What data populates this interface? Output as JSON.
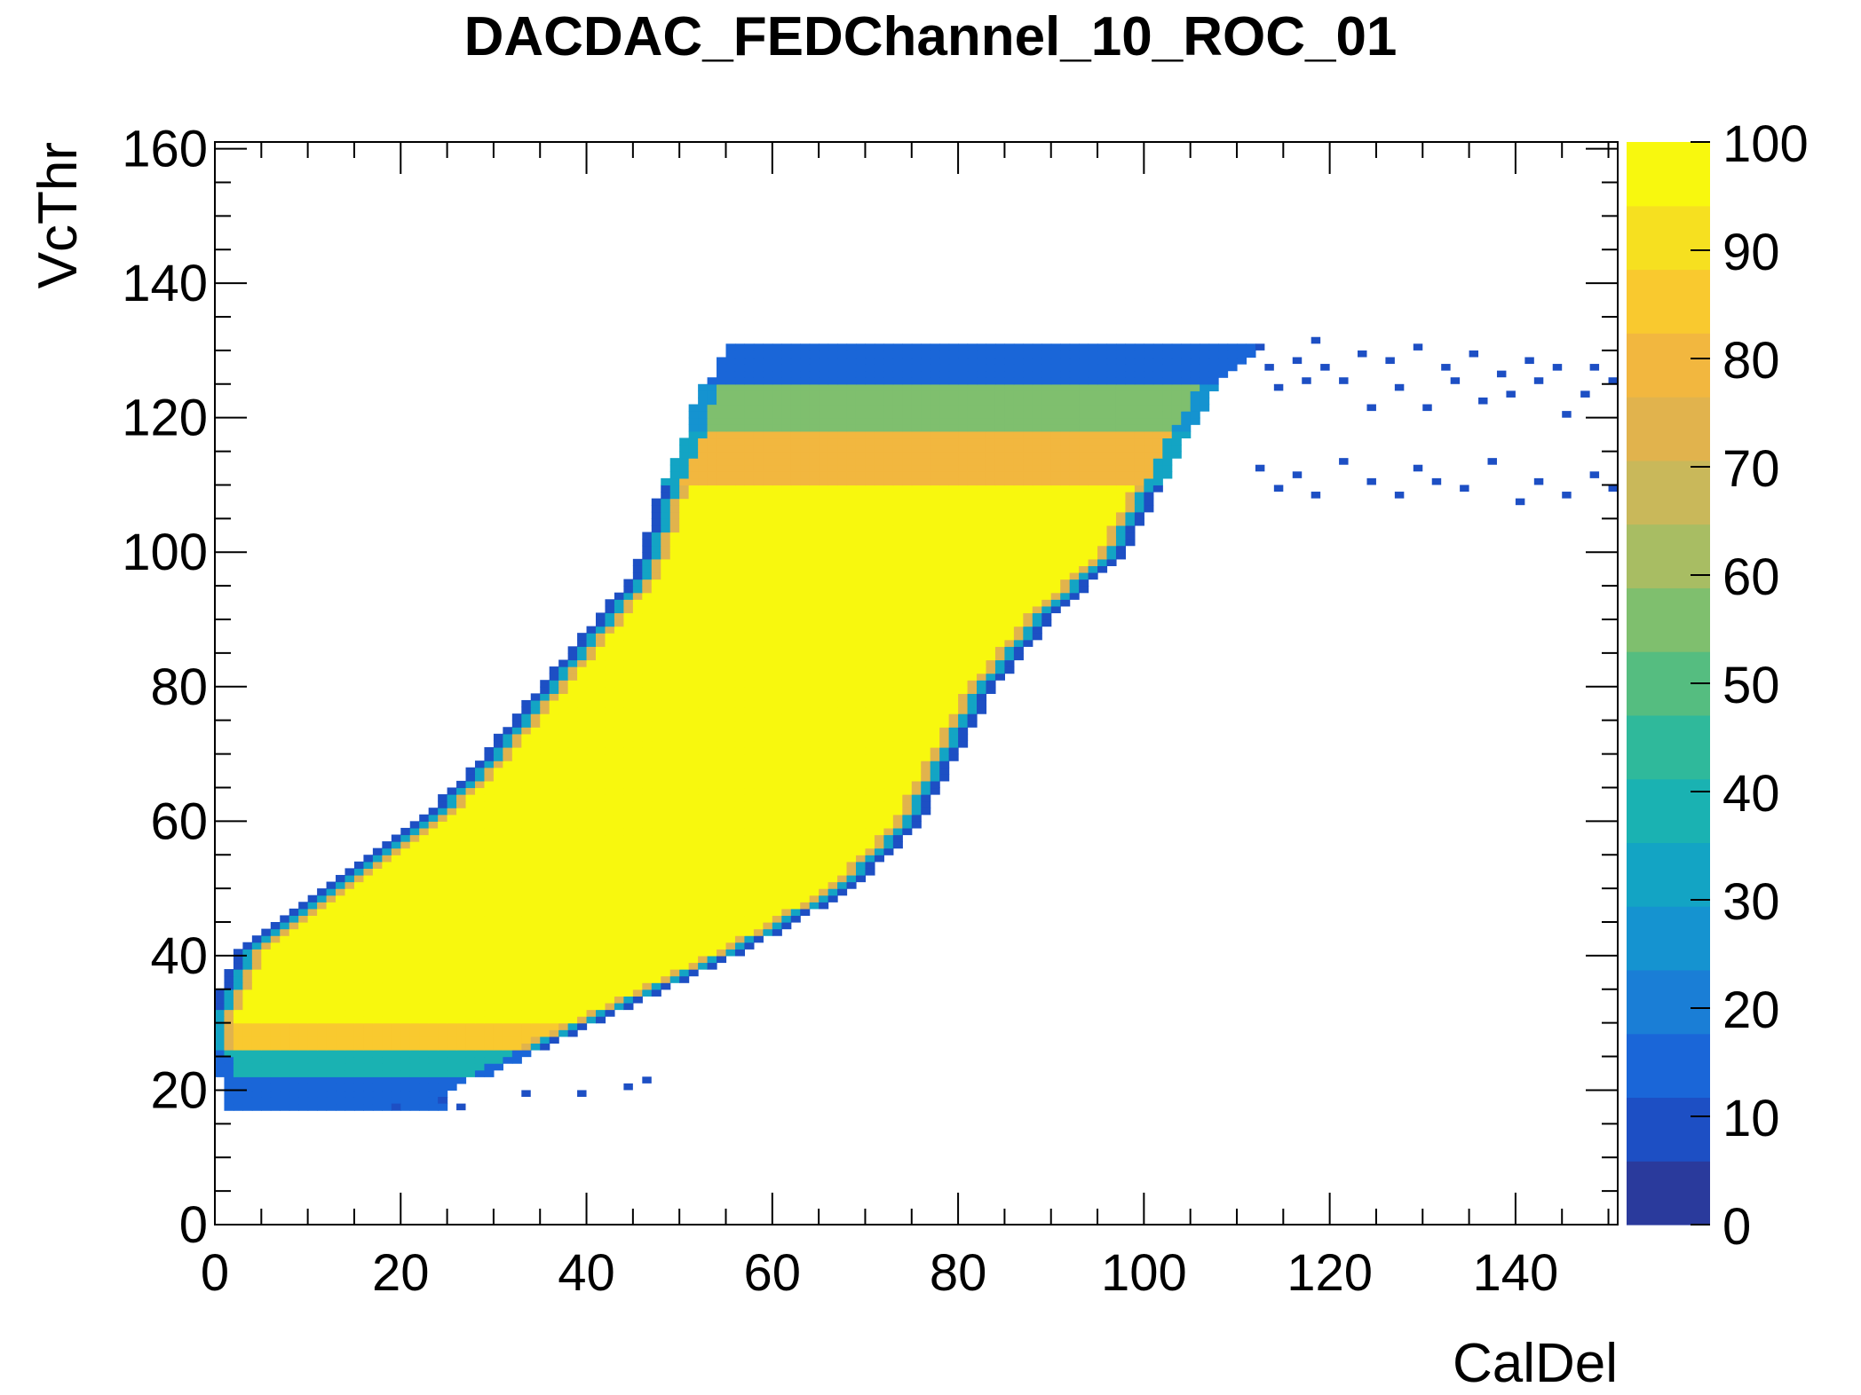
{
  "chart_data": {
    "type": "heatmap",
    "title": "DACDAC_FEDChannel_10_ROC_01",
    "xlabel": "CalDel",
    "ylabel": "VcThr",
    "xlim": [
      0,
      151
    ],
    "ylim": [
      0,
      161
    ],
    "x_ticks": [
      0,
      20,
      40,
      60,
      80,
      100,
      120,
      140
    ],
    "y_ticks": [
      0,
      20,
      40,
      60,
      80,
      100,
      120,
      140,
      160
    ],
    "z_ticks": [
      0,
      10,
      20,
      30,
      40,
      50,
      60,
      70,
      80,
      90,
      100
    ],
    "zlim": [
      0,
      100
    ],
    "colorbar_colors": [
      "#2a3a9c",
      "#1d4fc4",
      "#1a66d8",
      "#1a7ed6",
      "#1593d0",
      "#13a4c4",
      "#1ab2b2",
      "#2fb99b",
      "#55bd80",
      "#7fbf6e",
      "#a8bd63",
      "#c9b85a",
      "#e1b34d",
      "#f2b73f",
      "#f9c92f",
      "#f6e020",
      "#f8f80e"
    ],
    "region_blocks": [
      {
        "y_range": [
          17,
          26
        ],
        "x_range": [
          0,
          55
        ],
        "level": 15
      },
      {
        "y_range": [
          26,
          30
        ],
        "x_range": [
          0,
          100
        ],
        "level": 85
      },
      {
        "y_range": [
          30,
          110
        ],
        "x_band_left": [
          0,
          58
        ],
        "level": 100
      },
      {
        "y_range": [
          110,
          118
        ],
        "x_range": [
          53,
          103
        ],
        "level": 80
      },
      {
        "y_range": [
          118,
          125
        ],
        "x_range": [
          53,
          108
        ],
        "level": 45
      },
      {
        "y_range": [
          125,
          131
        ],
        "x_range": [
          54,
          115
        ],
        "level": 12
      },
      {
        "y_range": [
          103,
          127
        ],
        "x_range": [
          110,
          151
        ],
        "level": 8
      }
    ],
    "band_edges": {
      "y": [
        20,
        30,
        40,
        50,
        60,
        70,
        80,
        90,
        95,
        100,
        105,
        110,
        118,
        125,
        130
      ],
      "left_x": [
        1,
        0,
        3,
        12,
        23,
        30,
        36,
        42,
        45,
        47,
        48,
        49,
        52,
        53,
        55
      ],
      "right_x": [
        25,
        40,
        55,
        68,
        75,
        79,
        83,
        89,
        93,
        97,
        99,
        101,
        104,
        107,
        112
      ]
    },
    "scattered_points": [
      [
        112,
        130
      ],
      [
        113,
        127
      ],
      [
        114,
        124
      ],
      [
        116,
        128
      ],
      [
        117,
        125
      ],
      [
        118,
        131
      ],
      [
        119,
        127
      ],
      [
        121,
        125
      ],
      [
        123,
        129
      ],
      [
        124,
        121
      ],
      [
        126,
        128
      ],
      [
        127,
        124
      ],
      [
        129,
        130
      ],
      [
        130,
        121
      ],
      [
        132,
        127
      ],
      [
        133,
        125
      ],
      [
        135,
        129
      ],
      [
        136,
        122
      ],
      [
        138,
        126
      ],
      [
        139,
        123
      ],
      [
        141,
        128
      ],
      [
        142,
        125
      ],
      [
        144,
        127
      ],
      [
        145,
        120
      ],
      [
        147,
        123
      ],
      [
        148,
        127
      ],
      [
        150,
        125
      ],
      [
        112,
        112
      ],
      [
        114,
        109
      ],
      [
        116,
        111
      ],
      [
        118,
        108
      ],
      [
        121,
        113
      ],
      [
        124,
        110
      ],
      [
        127,
        108
      ],
      [
        129,
        112
      ],
      [
        131,
        110
      ],
      [
        134,
        109
      ],
      [
        137,
        113
      ],
      [
        140,
        107
      ],
      [
        142,
        110
      ],
      [
        145,
        108
      ],
      [
        148,
        111
      ],
      [
        150,
        109
      ],
      [
        19,
        17
      ],
      [
        24,
        18
      ],
      [
        26,
        17
      ],
      [
        33,
        19
      ],
      [
        39,
        19
      ],
      [
        44,
        20
      ],
      [
        46,
        21
      ]
    ]
  }
}
